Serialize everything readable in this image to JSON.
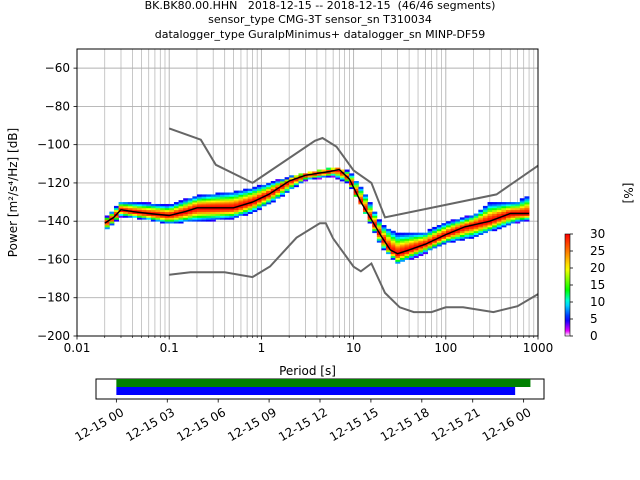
{
  "title_lines": [
    "BK.BK80.00.HHN   2018-12-15 -- 2018-12-15  (46/46 segments)",
    "sensor_type CMG-3T sensor_sn T310034",
    "datalogger_type GuralpMinimus+ datalogger_sn MINP-DF59"
  ],
  "chart_data": {
    "type": "heatmap",
    "xlabel": "Period [s]",
    "ylabel": "Power [m²/s⁴/Hz] [dB]",
    "xscale": "log",
    "xlim": [
      0.01,
      1000
    ],
    "ylim": [
      -200,
      -50
    ],
    "x_ticks": [
      {
        "value": 0.01,
        "label": "0.01"
      },
      {
        "value": 0.1,
        "label": "0.1"
      },
      {
        "value": 1,
        "label": "1"
      },
      {
        "value": 10,
        "label": "10"
      },
      {
        "value": 100,
        "label": "100"
      },
      {
        "value": 1000,
        "label": "1000"
      }
    ],
    "y_ticks": [
      -60,
      -80,
      -100,
      -120,
      -140,
      -160,
      -180,
      -200
    ],
    "grid": true,
    "colorbar": {
      "label": "[%]",
      "min": 0,
      "max": 30,
      "ticks": [
        0,
        5,
        10,
        15,
        20,
        25,
        30
      ]
    },
    "noise_models": {
      "nhnm": [
        [
          0.1,
          -91.5
        ],
        [
          0.22,
          -97.4
        ],
        [
          0.32,
          -110.5
        ],
        [
          0.8,
          -120
        ],
        [
          3.8,
          -98
        ],
        [
          4.6,
          -96.5
        ],
        [
          6.5,
          -101
        ],
        [
          10,
          -113.5
        ],
        [
          15.6,
          -120
        ],
        [
          21.9,
          -138
        ],
        [
          354.8,
          -126
        ],
        [
          1000,
          -111
        ]
      ],
      "nlnm": [
        [
          0.1,
          -168
        ],
        [
          0.17,
          -166.7
        ],
        [
          0.4,
          -166.7
        ],
        [
          0.8,
          -169.2
        ],
        [
          1.24,
          -163.7
        ],
        [
          2.4,
          -148.6
        ],
        [
          4.3,
          -141.1
        ],
        [
          5,
          -141.1
        ],
        [
          6,
          -149
        ],
        [
          10,
          -163.8
        ],
        [
          12,
          -166.2
        ],
        [
          15.6,
          -162.1
        ],
        [
          21.9,
          -177.5
        ],
        [
          31.6,
          -185
        ],
        [
          45,
          -187.5
        ],
        [
          70,
          -187.5
        ],
        [
          100,
          -185
        ],
        [
          154,
          -185
        ],
        [
          328,
          -187.5
        ],
        [
          600,
          -184.4
        ],
        [
          1000,
          -178.1
        ]
      ]
    },
    "mode": [
      [
        0.02,
        -141
      ],
      [
        0.025,
        -138
      ],
      [
        0.03,
        -134
      ],
      [
        0.04,
        -135
      ],
      [
        0.06,
        -136
      ],
      [
        0.1,
        -137
      ],
      [
        0.15,
        -135
      ],
      [
        0.2,
        -133
      ],
      [
        0.3,
        -133
      ],
      [
        0.5,
        -133
      ],
      [
        0.8,
        -130
      ],
      [
        1.2,
        -126
      ],
      [
        2,
        -119
      ],
      [
        3,
        -116
      ],
      [
        4,
        -115
      ],
      [
        5.5,
        -114
      ],
      [
        7,
        -113
      ],
      [
        9,
        -118
      ],
      [
        12,
        -130
      ],
      [
        16,
        -140
      ],
      [
        20,
        -148
      ],
      [
        25,
        -155
      ],
      [
        30,
        -157
      ],
      [
        40,
        -155
      ],
      [
        60,
        -152
      ],
      [
        100,
        -147
      ],
      [
        160,
        -143
      ],
      [
        300,
        -140
      ],
      [
        500,
        -136
      ],
      [
        800,
        -136
      ]
    ],
    "band_high": [
      [
        0.02,
        -139
      ],
      [
        0.03,
        -130
      ],
      [
        0.06,
        -131
      ],
      [
        0.1,
        -132
      ],
      [
        0.15,
        -129
      ],
      [
        0.2,
        -127
      ],
      [
        0.3,
        -126
      ],
      [
        0.5,
        -125
      ],
      [
        0.8,
        -123
      ],
      [
        1.5,
        -119
      ],
      [
        3,
        -115
      ],
      [
        6,
        -112
      ],
      [
        9,
        -114
      ],
      [
        13,
        -125
      ],
      [
        20,
        -142
      ],
      [
        30,
        -147
      ],
      [
        60,
        -146
      ],
      [
        100,
        -141
      ],
      [
        200,
        -137
      ],
      [
        300,
        -131
      ],
      [
        600,
        -130
      ],
      [
        800,
        -127
      ]
    ],
    "band_low": [
      [
        0.02,
        -145
      ],
      [
        0.03,
        -137
      ],
      [
        0.06,
        -139
      ],
      [
        0.1,
        -141
      ],
      [
        0.15,
        -140
      ],
      [
        0.3,
        -139
      ],
      [
        0.5,
        -138
      ],
      [
        0.8,
        -135
      ],
      [
        1.5,
        -128
      ],
      [
        3,
        -118
      ],
      [
        6,
        -116
      ],
      [
        9,
        -120
      ],
      [
        13,
        -134
      ],
      [
        20,
        -153
      ],
      [
        30,
        -162
      ],
      [
        60,
        -156
      ],
      [
        100,
        -151
      ],
      [
        200,
        -148
      ],
      [
        300,
        -145
      ],
      [
        600,
        -140
      ],
      [
        800,
        -139
      ]
    ],
    "timeline": {
      "tick_labels": [
        "12-15 00",
        "12-15 03",
        "12-15 06",
        "12-15 09",
        "12-15 12",
        "12-15 15",
        "12-15 18",
        "12-15 21",
        "12-16 00"
      ],
      "tick_hours": [
        0,
        3,
        6,
        9,
        12,
        15,
        18,
        21,
        24
      ],
      "range_hours": [
        -1.2,
        25.2
      ],
      "bars": [
        {
          "color": "#008000",
          "start": 0,
          "end": 24.4
        },
        {
          "color": "#0000ff",
          "start": 0,
          "end": 23.5
        }
      ]
    },
    "colors": {
      "noise_model": "#666666",
      "mode": "#000000",
      "axes": "#000000",
      "grid": "#b0b0b0"
    }
  }
}
